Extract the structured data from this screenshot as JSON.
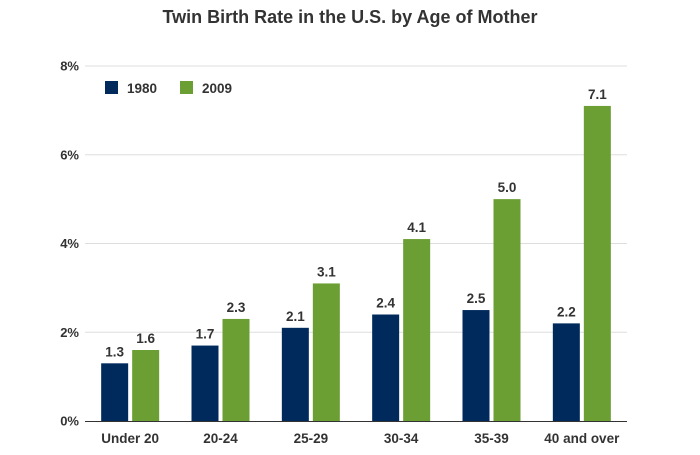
{
  "chart_data": {
    "type": "bar",
    "title": "Twin Birth Rate in the U.S. by Age of Mother",
    "xlabel": "",
    "ylabel": "",
    "categories": [
      "Under 20",
      "20-24",
      "25-29",
      "30-34",
      "35-39",
      "40 and over"
    ],
    "series": [
      {
        "name": "1980",
        "color": "#002a5c",
        "values": [
          1.3,
          1.7,
          2.1,
          2.4,
          2.5,
          2.2
        ]
      },
      {
        "name": "2009",
        "color": "#6b9e33",
        "values": [
          1.6,
          2.3,
          3.1,
          4.1,
          5.0,
          7.1
        ]
      }
    ],
    "ylim": [
      0,
      8
    ],
    "yticks": [
      "0%",
      "2%",
      "4%",
      "6%",
      "8%"
    ],
    "ytick_values": [
      0,
      2,
      4,
      6,
      8
    ],
    "grid": true,
    "legend_position": "top-left"
  }
}
